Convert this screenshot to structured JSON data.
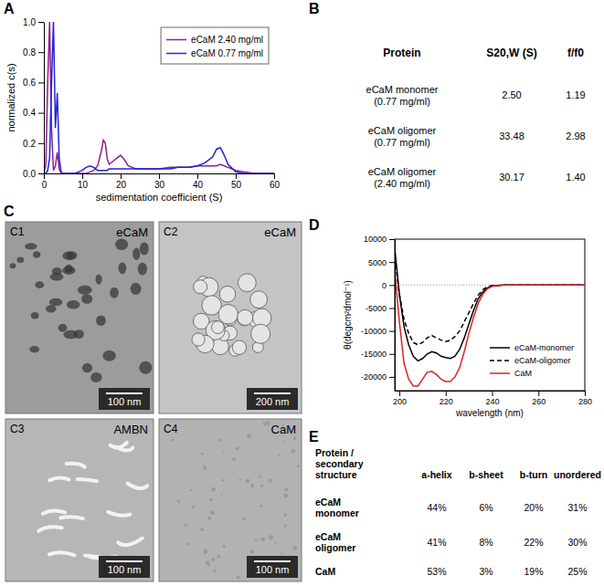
{
  "panel_letters": [
    "A",
    "B",
    "C",
    "D",
    "E"
  ],
  "chart_data": [
    {
      "type": "line",
      "xlabel": "sedimentation coefficient (S)",
      "ylabel": "normalized c(s)",
      "xlim": [
        0,
        60
      ],
      "xticks": [
        0,
        10,
        20,
        30,
        40,
        50,
        60
      ],
      "ylim": [
        0,
        1
      ],
      "yticks": [
        {
          "value": 0,
          "label": "0.0"
        },
        0.2,
        0.4,
        0.6,
        0.8,
        {
          "value": 1,
          "label": "1.0"
        }
      ],
      "legend": "top-right",
      "x": [
        0,
        0.5,
        1,
        1.5,
        2,
        2.5,
        3,
        3.5,
        4,
        4.5,
        5,
        6,
        7,
        8,
        9,
        10,
        11,
        12,
        13,
        14,
        15,
        15.5,
        16,
        16.5,
        17,
        18,
        19,
        20,
        21,
        22,
        23,
        24,
        25,
        27,
        30,
        33,
        35,
        38,
        40,
        42,
        44,
        45,
        46,
        47,
        48,
        50,
        52,
        55,
        58,
        60
      ],
      "series": [
        {
          "name": "eCaM 2.40 mg/ml",
          "color": "#8e1f8e",
          "line_style": "solid",
          "values": [
            0,
            0.05,
            0.6,
            1.0,
            0.3,
            0.02,
            0.05,
            0.14,
            0.03,
            0,
            0,
            0,
            0,
            0,
            0,
            0,
            0,
            0.01,
            0.02,
            0.05,
            0.15,
            0.22,
            0.2,
            0.1,
            0.06,
            0.08,
            0.1,
            0.12,
            0.09,
            0.05,
            0.04,
            0.03,
            0.03,
            0.03,
            0.03,
            0.04,
            0.04,
            0.04,
            0.05,
            0.05,
            0.05,
            0.05,
            0.06,
            0.05,
            0.04,
            0.02,
            0.01,
            0,
            0,
            0
          ]
        },
        {
          "name": "eCaM 0.77 mg/ml",
          "color": "#2222dd",
          "line_style": "solid",
          "values": [
            0,
            0,
            0.02,
            0.1,
            0.6,
            1.0,
            0.3,
            0.53,
            0.1,
            0.01,
            0,
            0,
            0,
            0,
            0.01,
            0.02,
            0.04,
            0.05,
            0.04,
            0.02,
            0.02,
            0.02,
            0.02,
            0.02,
            0.03,
            0.03,
            0.03,
            0.03,
            0.03,
            0.03,
            0.03,
            0.03,
            0.03,
            0.03,
            0.03,
            0.03,
            0.04,
            0.04,
            0.05,
            0.07,
            0.11,
            0.16,
            0.17,
            0.12,
            0.06,
            0.01,
            0,
            0,
            0,
            0
          ]
        }
      ]
    },
    {
      "type": "line",
      "xlabel": "wavelength (nm)",
      "ylabel": "θ(degcm²dmol⁻¹)",
      "xlim": [
        198,
        280
      ],
      "xticks": [
        200,
        220,
        240,
        260,
        280
      ],
      "ylim": [
        -23000,
        10000
      ],
      "yticks": [
        10000,
        5000,
        0,
        -5000,
        -10000,
        -15000,
        -20000
      ],
      "legend": "bottom-right",
      "x": [
        198,
        200,
        202,
        204,
        206,
        208,
        210,
        212,
        214,
        216,
        218,
        220,
        222,
        224,
        226,
        228,
        230,
        232,
        234,
        236,
        238,
        240,
        245,
        250,
        260,
        270,
        280
      ],
      "series": [
        {
          "name": "eCaM-monomer",
          "color": "#000000",
          "line_style": "solid",
          "values": [
            8000,
            -2000,
            -9000,
            -13000,
            -15500,
            -16500,
            -16000,
            -15000,
            -14500,
            -14800,
            -15500,
            -15800,
            -16000,
            -15500,
            -14000,
            -11500,
            -8500,
            -5500,
            -3000,
            -1500,
            -600,
            -200,
            0,
            0,
            0,
            0,
            0
          ]
        },
        {
          "name": "eCaM-oligomer",
          "color": "#000000",
          "line_style": "dashed",
          "values": [
            6000,
            -2000,
            -7500,
            -10500,
            -12500,
            -13000,
            -12500,
            -11500,
            -11000,
            -11500,
            -12000,
            -12300,
            -12000,
            -11200,
            -10000,
            -8000,
            -6000,
            -4000,
            -2200,
            -1000,
            -400,
            -100,
            0,
            0,
            0,
            0,
            0
          ]
        },
        {
          "name": "CaM",
          "color": "#e02020",
          "line_style": "solid",
          "values": [
            3000,
            -8000,
            -17000,
            -20500,
            -22000,
            -22000,
            -20500,
            -19000,
            -18800,
            -19500,
            -20500,
            -21000,
            -21000,
            -20000,
            -18000,
            -14500,
            -10500,
            -7000,
            -4000,
            -2000,
            -800,
            -300,
            0,
            0,
            0,
            0,
            0
          ]
        }
      ]
    }
  ],
  "table_b": {
    "header": [
      "Protein",
      "S20,W (S)",
      "f/f0"
    ],
    "rows": [
      [
        "eCaM monomer (0.77 mg/ml)",
        "2.50",
        "1.19"
      ],
      [
        "eCaM oligomer (0.77 mg/ml)",
        "33.48",
        "2.98"
      ],
      [
        "eCaM oligomer (2.40 mg/ml)",
        "30.17",
        "1.40"
      ]
    ]
  },
  "micrographs": [
    {
      "id": "C1",
      "label": "eCaM",
      "scale_bar": "100 nm"
    },
    {
      "id": "C2",
      "label": "eCaM",
      "scale_bar": "200 nm"
    },
    {
      "id": "C3",
      "label": "AMBN",
      "scale_bar": "100 nm"
    },
    {
      "id": "C4",
      "label": "CaM",
      "scale_bar": "100 nm"
    }
  ],
  "table_e": {
    "header": [
      "Protein / secondary structure",
      "a-helix",
      "b-sheet",
      "b-turn",
      "unordered"
    ],
    "rows": [
      [
        "eCaM monomer",
        "44%",
        "6%",
        "20%",
        "31%"
      ],
      [
        "eCaM oligomer",
        "41%",
        "8%",
        "22%",
        "30%"
      ],
      [
        "CaM",
        "53%",
        "3%",
        "19%",
        "25%"
      ]
    ]
  }
}
